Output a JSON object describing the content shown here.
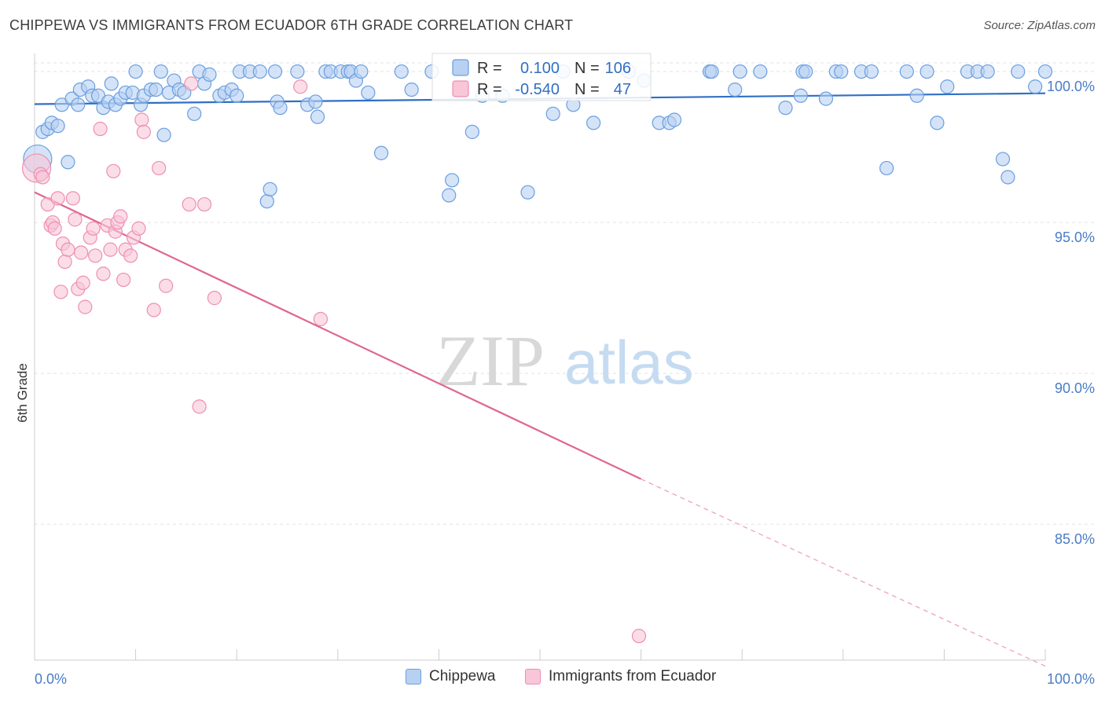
{
  "title": "CHIPPEWA VS IMMIGRANTS FROM ECUADOR 6TH GRADE CORRELATION CHART",
  "source": "Source: ZipAtlas.com",
  "watermark": {
    "zip": "ZIP",
    "atlas": "atlas"
  },
  "legend_top": {
    "rows": [
      {
        "r_label": "R =",
        "r_value": "0.100",
        "n_label": "N =",
        "n_value": "106",
        "color": "#6a9fe0",
        "fill": "#b8d0f2"
      },
      {
        "r_label": "R =",
        "r_value": "-0.540",
        "n_label": "N =",
        "n_value": "47",
        "color": "#ee8fb0",
        "fill": "#f8c6d8"
      }
    ]
  },
  "legend_bottom": [
    {
      "label": "Chippewa",
      "color": "#6a9fe0",
      "fill": "#b8d0f2"
    },
    {
      "label": "Immigrants from Ecuador",
      "color": "#ee8fb0",
      "fill": "#f8c6d8"
    }
  ],
  "chart_data": {
    "type": "scatter",
    "title": "CHIPPEWA VS IMMIGRANTS FROM ECUADOR 6TH GRADE CORRELATION CHART",
    "xlabel": "",
    "ylabel": "6th Grade",
    "xlim": [
      0,
      100
    ],
    "ylim": [
      80.5,
      100.6
    ],
    "x_tick_labels": [
      "0.0%",
      "100.0%"
    ],
    "y_ticks": [
      85,
      90,
      95,
      100
    ],
    "y_tick_labels": [
      "85.0%",
      "90.0%",
      "95.0%",
      "100.0%"
    ],
    "grid": true,
    "legend_placement": "bottom",
    "series": [
      {
        "name": "Chippewa",
        "color": "#3a78c8",
        "fill": "#b8d0f2",
        "stroke": "#6a9fe0",
        "trend": {
          "x0": 0,
          "y0": 98.92,
          "x1": 100,
          "y1": 99.28,
          "color": "#2f6fc4"
        },
        "points": [
          [
            0.3,
            97.1,
            3
          ],
          [
            0.8,
            98.0,
            1
          ],
          [
            1.3,
            98.1,
            1
          ],
          [
            1.7,
            98.3,
            1
          ],
          [
            2.3,
            98.2,
            1
          ],
          [
            2.7,
            98.9,
            1
          ],
          [
            3.3,
            97.0,
            1
          ],
          [
            3.7,
            99.1,
            1
          ],
          [
            4.3,
            98.9,
            1
          ],
          [
            4.5,
            99.4,
            1
          ],
          [
            5.3,
            99.5,
            1
          ],
          [
            5.7,
            99.2,
            1
          ],
          [
            6.3,
            99.2,
            1
          ],
          [
            6.8,
            98.8,
            1
          ],
          [
            7.3,
            99.0,
            1
          ],
          [
            7.6,
            99.6,
            1
          ],
          [
            8.0,
            98.9,
            1
          ],
          [
            8.5,
            99.1,
            1
          ],
          [
            9.0,
            99.3,
            1
          ],
          [
            9.7,
            99.3,
            1
          ],
          [
            10.0,
            100.0,
            1
          ],
          [
            10.5,
            98.9,
            1
          ],
          [
            10.8,
            99.2,
            1
          ],
          [
            11.5,
            99.4,
            1
          ],
          [
            12.0,
            99.4,
            1
          ],
          [
            12.5,
            100.0,
            1
          ],
          [
            12.8,
            97.9,
            1
          ],
          [
            13.3,
            99.3,
            1
          ],
          [
            13.8,
            99.7,
            1
          ],
          [
            14.3,
            99.4,
            1
          ],
          [
            14.8,
            99.3,
            1
          ],
          [
            15.8,
            98.6,
            1
          ],
          [
            16.3,
            100.0,
            1
          ],
          [
            16.8,
            99.6,
            1
          ],
          [
            17.3,
            99.9,
            1
          ],
          [
            18.3,
            99.2,
            1
          ],
          [
            18.8,
            99.3,
            1
          ],
          [
            19.5,
            99.4,
            1
          ],
          [
            20.0,
            99.2,
            1
          ],
          [
            20.3,
            100.0,
            1
          ],
          [
            21.3,
            100.0,
            1
          ],
          [
            22.3,
            100.0,
            1
          ],
          [
            23.0,
            95.7,
            1
          ],
          [
            23.3,
            96.1,
            1
          ],
          [
            23.8,
            100.0,
            1
          ],
          [
            24.0,
            99.0,
            1
          ],
          [
            24.3,
            98.8,
            1
          ],
          [
            26.0,
            100.0,
            1
          ],
          [
            27.0,
            98.9,
            1
          ],
          [
            27.8,
            99.0,
            1
          ],
          [
            28.0,
            98.5,
            1
          ],
          [
            28.8,
            100.0,
            1
          ],
          [
            29.3,
            100.0,
            1
          ],
          [
            30.3,
            100.0,
            1
          ],
          [
            31.0,
            100.0,
            1
          ],
          [
            31.3,
            100.0,
            1
          ],
          [
            31.8,
            99.7,
            1
          ],
          [
            32.3,
            100.0,
            1
          ],
          [
            33.0,
            99.3,
            1
          ],
          [
            34.3,
            97.3,
            1
          ],
          [
            36.3,
            100.0,
            1
          ],
          [
            37.3,
            99.4,
            1
          ],
          [
            39.3,
            100.0,
            1
          ],
          [
            41.0,
            95.9,
            1
          ],
          [
            41.3,
            96.4,
            1
          ],
          [
            43.3,
            98.0,
            1
          ],
          [
            44.3,
            99.2,
            1
          ],
          [
            46.3,
            99.2,
            1
          ],
          [
            48.8,
            96.0,
            1
          ],
          [
            51.3,
            98.6,
            1
          ],
          [
            52.3,
            100.0,
            1
          ],
          [
            53.3,
            98.9,
            1
          ],
          [
            55.3,
            98.3,
            1
          ],
          [
            58.8,
            100.0,
            1
          ],
          [
            60.3,
            99.7,
            1
          ],
          [
            61.8,
            98.3,
            1
          ],
          [
            62.8,
            98.3,
            1
          ],
          [
            63.3,
            98.4,
            1
          ],
          [
            66.8,
            100.0,
            1
          ],
          [
            67.0,
            100.0,
            1
          ],
          [
            69.3,
            99.4,
            1
          ],
          [
            69.8,
            100.0,
            1
          ],
          [
            71.8,
            100.0,
            1
          ],
          [
            74.3,
            98.8,
            1
          ],
          [
            75.8,
            99.2,
            1
          ],
          [
            76.0,
            100.0,
            1
          ],
          [
            76.3,
            100.0,
            1
          ],
          [
            78.3,
            99.1,
            1
          ],
          [
            79.3,
            100.0,
            1
          ],
          [
            79.8,
            100.0,
            1
          ],
          [
            81.8,
            100.0,
            1
          ],
          [
            82.8,
            100.0,
            1
          ],
          [
            84.3,
            96.8,
            1
          ],
          [
            86.3,
            100.0,
            1
          ],
          [
            87.3,
            99.2,
            1
          ],
          [
            88.3,
            100.0,
            1
          ],
          [
            89.3,
            98.3,
            1
          ],
          [
            90.3,
            99.5,
            1
          ],
          [
            92.3,
            100.0,
            1
          ],
          [
            93.3,
            100.0,
            1
          ],
          [
            94.3,
            100.0,
            1
          ],
          [
            95.8,
            97.1,
            1
          ],
          [
            96.3,
            96.5,
            1
          ],
          [
            97.3,
            100.0,
            1
          ],
          [
            100.0,
            100.0,
            1
          ],
          [
            99.0,
            99.5,
            1
          ]
        ]
      },
      {
        "name": "Immigrants from Ecuador",
        "color": "#e4729a",
        "fill": "#f8c6d8",
        "stroke": "#ee8fb0",
        "trend": {
          "x0": 0,
          "y0": 96.0,
          "x1": 60,
          "y1": 86.5,
          "color": "#e06591"
        },
        "trend_dashed": {
          "x0": 60,
          "y0": 86.5,
          "x1": 100,
          "y1": 80.3,
          "color": "#ee9ab8"
        },
        "points": [
          [
            0.2,
            96.8,
            3
          ],
          [
            0.6,
            96.6,
            1
          ],
          [
            0.8,
            96.5,
            1
          ],
          [
            1.3,
            95.6,
            1
          ],
          [
            1.6,
            94.9,
            1
          ],
          [
            1.8,
            95.0,
            1
          ],
          [
            2.0,
            94.8,
            1
          ],
          [
            2.3,
            95.8,
            1
          ],
          [
            2.6,
            92.7,
            1
          ],
          [
            2.8,
            94.3,
            1
          ],
          [
            3.0,
            93.7,
            1
          ],
          [
            3.3,
            94.1,
            1
          ],
          [
            3.8,
            95.8,
            1
          ],
          [
            4.0,
            95.1,
            1
          ],
          [
            4.3,
            92.8,
            1
          ],
          [
            4.6,
            94.0,
            1
          ],
          [
            4.8,
            93.0,
            1
          ],
          [
            5.0,
            92.2,
            1
          ],
          [
            5.5,
            94.5,
            1
          ],
          [
            5.8,
            94.8,
            1
          ],
          [
            6.0,
            93.9,
            1
          ],
          [
            6.5,
            98.1,
            1
          ],
          [
            6.8,
            93.3,
            1
          ],
          [
            7.2,
            94.9,
            1
          ],
          [
            7.5,
            94.1,
            1
          ],
          [
            7.8,
            96.7,
            1
          ],
          [
            8.0,
            94.7,
            1
          ],
          [
            8.2,
            95.0,
            1
          ],
          [
            8.5,
            95.2,
            1
          ],
          [
            8.8,
            93.1,
            1
          ],
          [
            9.0,
            94.1,
            1
          ],
          [
            9.5,
            93.9,
            1
          ],
          [
            9.8,
            94.5,
            1
          ],
          [
            10.3,
            94.8,
            1
          ],
          [
            10.6,
            98.4,
            1
          ],
          [
            10.8,
            98.0,
            1
          ],
          [
            11.8,
            92.1,
            1
          ],
          [
            12.3,
            96.8,
            1
          ],
          [
            13.0,
            92.9,
            1
          ],
          [
            15.3,
            95.6,
            1
          ],
          [
            15.5,
            99.6,
            1
          ],
          [
            16.3,
            88.9,
            1
          ],
          [
            16.8,
            95.6,
            1
          ],
          [
            17.8,
            92.5,
            1
          ],
          [
            26.3,
            99.5,
            1
          ],
          [
            28.3,
            91.8,
            1
          ],
          [
            59.8,
            81.3,
            1
          ]
        ]
      }
    ]
  }
}
